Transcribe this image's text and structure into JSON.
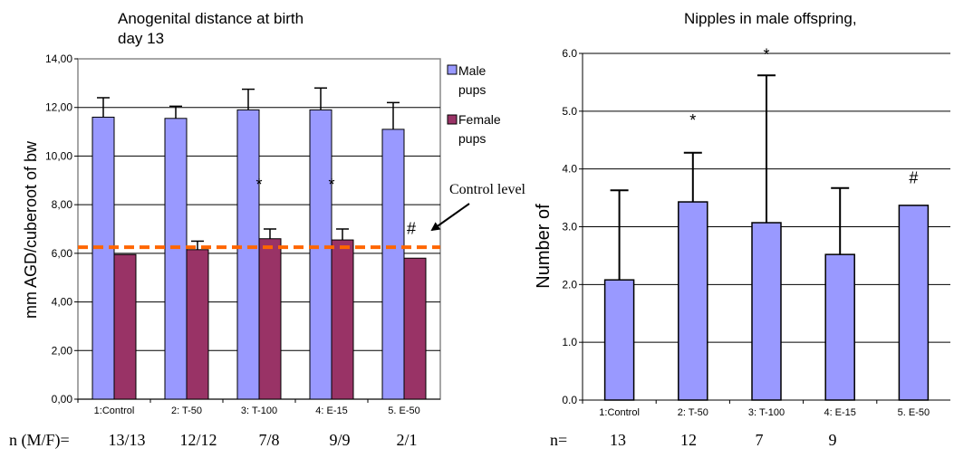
{
  "chart_data": [
    {
      "type": "bar",
      "title": "Anogenital distance at birth day 13",
      "title_lines": [
        "Anogenital distance at birth",
        "day 13"
      ],
      "ylabel": "mm AGD/cuberoot of bw",
      "xlabel": "",
      "ylim": [
        0,
        14
      ],
      "yticks": [
        "0,00",
        "2,00",
        "4,00",
        "6,00",
        "8,00",
        "10,00",
        "12,00",
        "14,00"
      ],
      "grid": true,
      "legend_position": "right",
      "categories": [
        "1:Control",
        "2: T-50",
        "3: T-100",
        "4: E-15",
        "5. E-50"
      ],
      "series": [
        {
          "name": "Male pups",
          "name_lines": [
            "Male",
            "pups"
          ],
          "color": "#9999ff",
          "values": [
            11.6,
            11.55,
            11.9,
            11.9,
            11.1
          ],
          "errors": [
            0.8,
            0.5,
            0.85,
            0.9,
            1.1
          ]
        },
        {
          "name": "Female pups",
          "name_lines": [
            "Female",
            "pups"
          ],
          "color": "#993366",
          "values": [
            5.95,
            6.15,
            6.6,
            6.55,
            5.8
          ],
          "errors": [
            0.0,
            0.35,
            0.4,
            0.45,
            0.0
          ]
        }
      ],
      "reference_line": {
        "label": "Control level",
        "value": 6.25,
        "color": "#ff6600"
      },
      "markers": [
        {
          "category": "3: T-100",
          "text": "*"
        },
        {
          "category": "4: E-15",
          "text": "*"
        },
        {
          "category": "5. E-50",
          "text": "#"
        }
      ],
      "n_label": "n (M/F)=",
      "n_values": [
        "13/13",
        "12/12",
        "7/8",
        "9/9",
        "2/1"
      ]
    },
    {
      "type": "bar",
      "title": "Nipples in male offspring,",
      "ylabel": "Number of",
      "xlabel": "",
      "ylim": [
        0,
        6
      ],
      "yticks": [
        "0.0",
        "1.0",
        "2.0",
        "3.0",
        "4.0",
        "5.0",
        "6.0"
      ],
      "grid": true,
      "categories": [
        "1:Control",
        "2: T-50",
        "3: T-100",
        "4: E-15",
        "5. E-50"
      ],
      "series": [
        {
          "color": "#9999ff",
          "values": [
            2.08,
            3.43,
            3.07,
            2.52,
            3.37
          ],
          "errors": [
            1.55,
            0.85,
            2.55,
            1.15,
            0.0
          ]
        }
      ],
      "markers": [
        {
          "category": "2: T-50",
          "text": "*"
        },
        {
          "category": "3: T-100",
          "text": "*"
        },
        {
          "category": "5. E-50",
          "text": "#"
        }
      ],
      "n_label": "n=",
      "n_values": [
        "13",
        "12",
        "7",
        "9"
      ]
    }
  ]
}
